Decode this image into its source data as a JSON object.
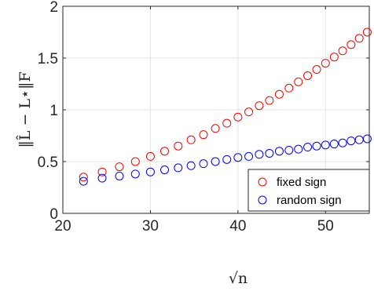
{
  "chart_data": {
    "type": "scatter",
    "title": "",
    "xlabel": "√n",
    "ylabel": "‖L̂ − L⋆‖F",
    "xlim": [
      20,
      55
    ],
    "ylim": [
      0,
      2
    ],
    "xticks": [
      "20",
      "30",
      "40",
      "50"
    ],
    "yticks": [
      "0",
      "0.5",
      "1",
      "1.5",
      "2"
    ],
    "grid": true,
    "legend_position": "bottom-right",
    "series": [
      {
        "name": "fixed sign",
        "color": "#ff0000",
        "marker": "circle",
        "x": [
          22.36,
          24.49,
          26.46,
          28.28,
          30.0,
          31.62,
          33.17,
          34.64,
          36.06,
          37.42,
          38.73,
          40.0,
          41.23,
          42.43,
          43.59,
          44.72,
          45.83,
          46.9,
          47.96,
          48.99,
          50.0,
          50.99,
          51.96,
          52.92,
          53.85,
          54.77
        ],
        "y": [
          0.35,
          0.4,
          0.45,
          0.5,
          0.55,
          0.6,
          0.65,
          0.71,
          0.76,
          0.82,
          0.87,
          0.93,
          0.98,
          1.04,
          1.09,
          1.15,
          1.21,
          1.27,
          1.33,
          1.39,
          1.45,
          1.51,
          1.57,
          1.63,
          1.69,
          1.75
        ]
      },
      {
        "name": "random sign",
        "color": "#0000ff",
        "marker": "circle",
        "x": [
          22.36,
          24.49,
          26.46,
          28.28,
          30.0,
          31.62,
          33.17,
          34.64,
          36.06,
          37.42,
          38.73,
          40.0,
          41.23,
          42.43,
          43.59,
          44.72,
          45.83,
          46.9,
          47.96,
          48.99,
          50.0,
          50.99,
          51.96,
          52.92,
          53.85,
          54.77
        ],
        "y": [
          0.31,
          0.34,
          0.36,
          0.38,
          0.4,
          0.42,
          0.44,
          0.46,
          0.48,
          0.5,
          0.52,
          0.54,
          0.55,
          0.57,
          0.58,
          0.6,
          0.61,
          0.62,
          0.64,
          0.65,
          0.66,
          0.67,
          0.68,
          0.7,
          0.71,
          0.72
        ]
      }
    ]
  }
}
